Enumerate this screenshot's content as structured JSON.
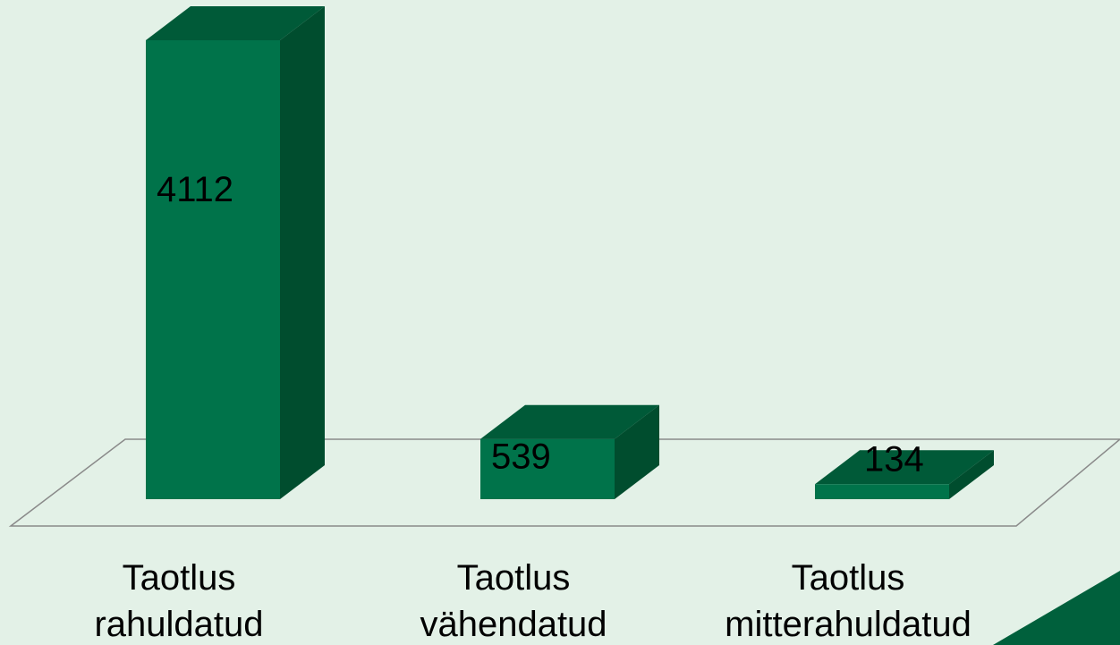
{
  "chart_data": {
    "type": "bar3d",
    "categories": [
      "Taotlus rahuldatud",
      "Taotlus vähendatud",
      "Taotlus mitterahuldatud"
    ],
    "values": [
      4112,
      539,
      134
    ],
    "color": "#00734a"
  }
}
